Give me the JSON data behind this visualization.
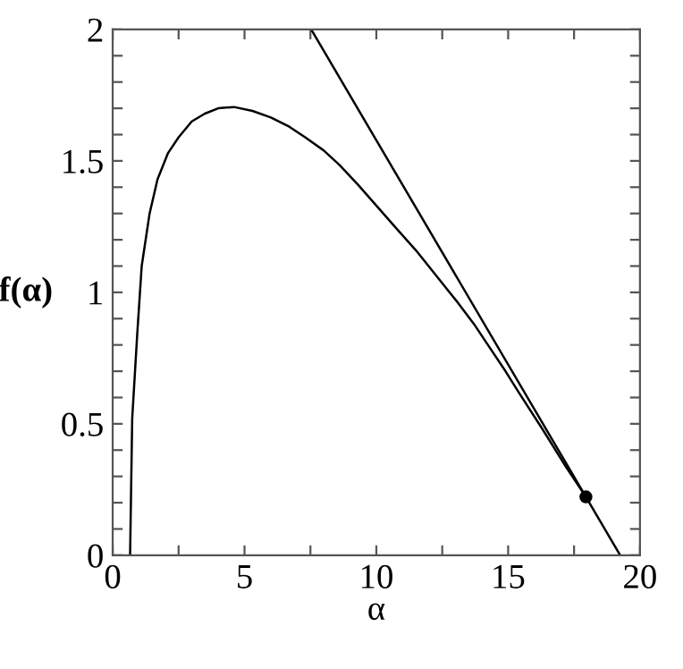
{
  "chart_data": {
    "type": "line",
    "xlabel": "α",
    "ylabel": "f(α)",
    "series": [
      {
        "color": "#000000",
        "x": [
          0.66,
          0.74,
          0.93,
          1.1,
          1.4,
          1.7,
          2.1,
          2.5,
          3.0,
          3.5,
          4.0,
          4.6,
          5.3,
          6.0,
          6.7,
          7.3,
          8.0,
          8.6,
          9.3,
          10.0,
          10.7,
          11.5,
          12.3,
          13.1,
          13.7,
          14.3,
          14.9,
          15.4,
          16.3,
          17.2,
          17.95
        ],
        "values": [
          0,
          0.52,
          0.84,
          1.1,
          1.3,
          1.43,
          1.53,
          1.59,
          1.65,
          1.68,
          1.7,
          1.705,
          1.69,
          1.665,
          1.63,
          1.59,
          1.54,
          1.485,
          1.41,
          1.33,
          1.25,
          1.16,
          1.06,
          0.96,
          0.88,
          0.79,
          0.7,
          0.62,
          0.48,
          0.335,
          0.222
        ]
      },
      {
        "color": "#000000",
        "x": [
          7.53,
          19.25
        ],
        "values": [
          2.0,
          0
        ]
      },
      {
        "type": "scatter",
        "color": "#000000",
        "marker": "circle",
        "x": [
          17.95
        ],
        "values": [
          0.222
        ]
      }
    ],
    "xlim": [
      0,
      20
    ],
    "ylim": [
      0,
      2
    ],
    "xticks": [
      0,
      {
        "value": 2.5,
        "label": null
      },
      5,
      {
        "value": 7.5,
        "label": null
      },
      10,
      {
        "value": 12.5,
        "label": null
      },
      15,
      {
        "value": 17.5,
        "label": null
      },
      20
    ],
    "yticks": [
      0,
      {
        "value": 0.1,
        "label": null
      },
      {
        "value": 0.2,
        "label": null
      },
      {
        "value": 0.3,
        "label": null
      },
      {
        "value": 0.4,
        "label": null
      },
      0.5,
      {
        "value": 0.6,
        "label": null
      },
      {
        "value": 0.7,
        "label": null
      },
      {
        "value": 0.8,
        "label": null
      },
      {
        "value": 0.9,
        "label": null
      },
      1,
      {
        "value": 1.1,
        "label": null
      },
      {
        "value": 1.2,
        "label": null
      },
      {
        "value": 1.3,
        "label": null
      },
      {
        "value": 1.4,
        "label": null
      },
      1.5,
      {
        "value": 1.6,
        "label": null
      },
      {
        "value": 1.7,
        "label": null
      },
      {
        "value": 1.8,
        "label": null
      },
      {
        "value": 1.9,
        "label": null
      },
      2
    ],
    "grid": false,
    "legend": false
  }
}
